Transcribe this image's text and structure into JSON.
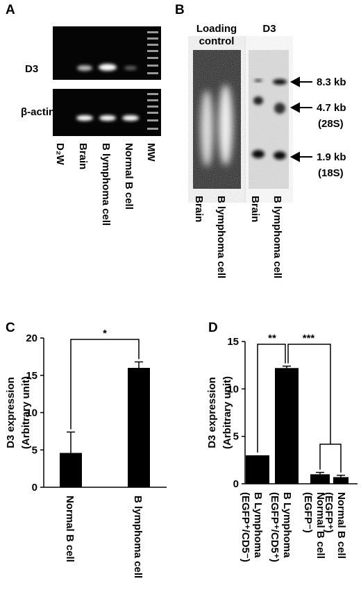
{
  "panels": {
    "a": {
      "label": "A",
      "rows": [
        "D3",
        "β-actin"
      ],
      "lanes": [
        "D₂W",
        "Brain",
        "B lymphoma cell",
        "Normal B cell",
        "MW"
      ]
    },
    "b": {
      "label": "B",
      "headers": [
        "Loading control",
        "D3"
      ],
      "lanes": [
        "Brain",
        "B lymphoma cell",
        "Brain",
        "B lymphoma cell"
      ],
      "markers": [
        {
          "size": "8.3 kb"
        },
        {
          "size": "4.7 kb",
          "rrna": "(28S)"
        },
        {
          "size": "1.9 kb",
          "rrna": "(18S)"
        }
      ]
    }
  },
  "chart_data": [
    {
      "type": "bar",
      "panel": "C",
      "ylabel": "D3 expression (Arbitrary unit)",
      "categories": [
        "Normal B cell",
        "B lymphoma cell"
      ],
      "values": [
        4.6,
        16
      ],
      "errors": [
        2.8,
        0.8
      ],
      "color": "#000000",
      "ylim": [
        0,
        20
      ],
      "yticks": [
        0,
        5,
        10,
        15,
        20
      ],
      "annotations": [
        "*"
      ]
    },
    {
      "type": "bar",
      "panel": "D",
      "ylabel": "D3 expression (Arbitrary unit)",
      "categories": [
        "B Lymphoma (EGFP⁺/CD5⁻)",
        "B Lymphoma (EGFP⁺/CD5⁺)",
        "Normal B cell (EGFP⁻)",
        "Normal B cell (EGFP⁺)"
      ],
      "values": [
        3.0,
        12.2,
        1.0,
        0.7
      ],
      "errors": [
        0,
        0.2,
        0.2,
        0.2
      ],
      "color": "#000000",
      "ylim": [
        0,
        15
      ],
      "yticks": [
        0,
        5,
        10,
        15
      ],
      "annotations": [
        "**",
        "***"
      ]
    }
  ]
}
